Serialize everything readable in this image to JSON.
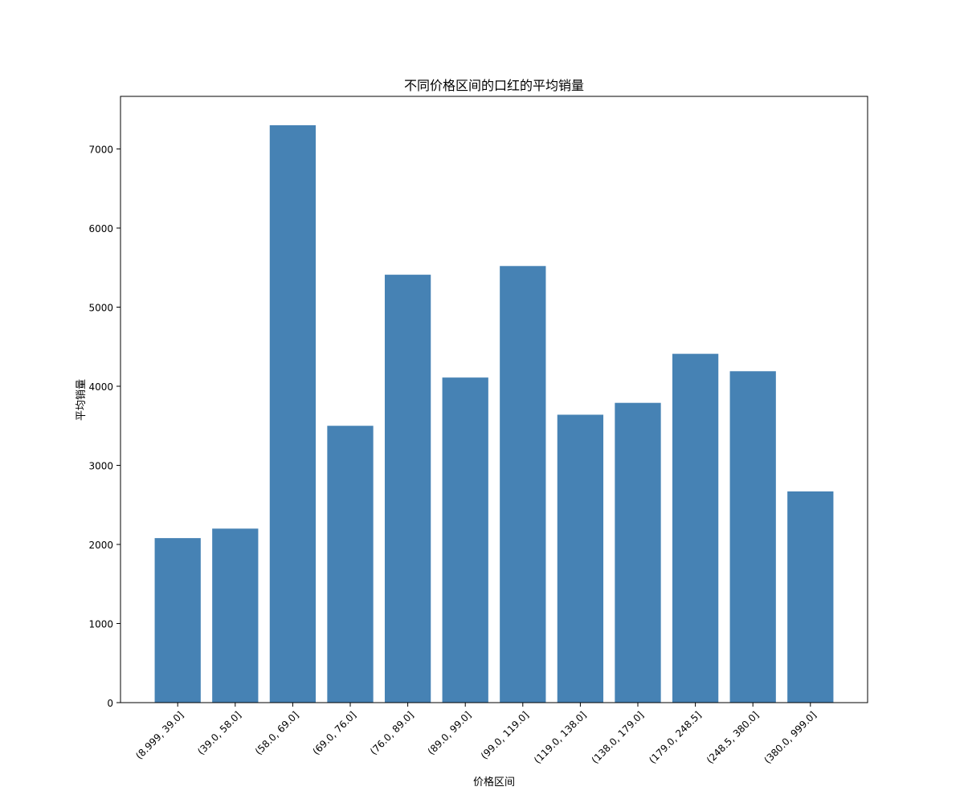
{
  "chart_data": {
    "type": "bar",
    "title": "不同价格区间的口红的平均销量",
    "x_label": "价格区间",
    "y_label": "平均销量",
    "categories": [
      "(8.999, 39.0]",
      "(39.0, 58.0]",
      "(58.0, 69.0]",
      "(69.0, 76.0]",
      "(76.0, 89.0]",
      "(89.0, 99.0]",
      "(99.0, 119.0]",
      "(119.0, 138.0]",
      "(138.0, 179.0]",
      "(179.0, 248.5]",
      "(248.5, 380.0]",
      "(380.0, 999.0]"
    ],
    "values": [
      2080,
      2200,
      7300,
      3500,
      5410,
      4110,
      5520,
      3640,
      3790,
      4410,
      4190,
      2670
    ],
    "color": "#4682b4",
    "ylim": [
      0,
      7665
    ],
    "yticks": [
      0,
      1000,
      2000,
      3000,
      4000,
      5000,
      6000,
      7000
    ]
  }
}
